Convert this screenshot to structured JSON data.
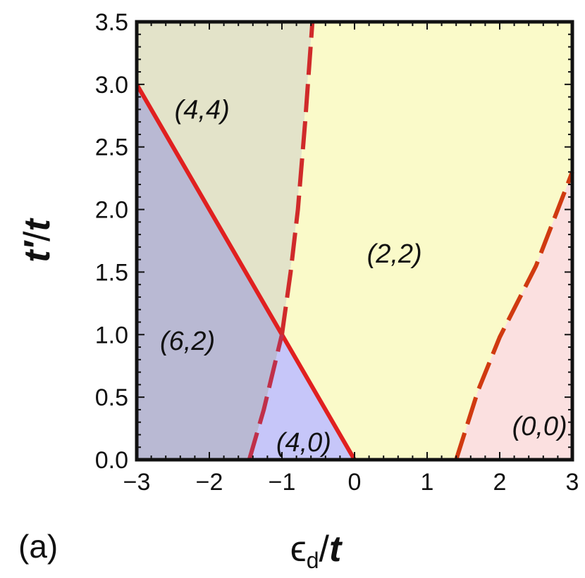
{
  "panel_label": "(a)",
  "chart_data": {
    "type": "area",
    "chart_kind": "phase diagram",
    "xlabel": {
      "symbol": "ϵ",
      "subscript": "d",
      "slash": "/",
      "unit": "t"
    },
    "ylabel": {
      "symbol": "t′",
      "slash": "/",
      "unit": "t"
    },
    "xlim": [
      -3,
      3
    ],
    "ylim": [
      0,
      3.5
    ],
    "xticks": [
      -3,
      -2,
      -1,
      0,
      1,
      2,
      3
    ],
    "xtick_labels": [
      "−3",
      "−2",
      "−1",
      "0",
      "1",
      "2",
      "3"
    ],
    "yticks": [
      0,
      0.5,
      1,
      1.5,
      2,
      2.5,
      3,
      3.5
    ],
    "ytick_labels": [
      "0.0",
      "0.5",
      "1.0",
      "1.5",
      "2.0",
      "2.5",
      "3.0",
      "3.5"
    ],
    "grid": false,
    "regions": [
      {
        "label": "(4,4)",
        "color": "#e3e3c9",
        "label_pos": [
          -2.1,
          2.8
        ],
        "polygon": [
          [
            -3,
            3.5
          ],
          [
            -0.58,
            3.5
          ],
          [
            -0.82,
            1.8
          ],
          [
            -1.0,
            1.0
          ],
          [
            -3,
            3.0
          ]
        ]
      },
      {
        "label": "(6,2)",
        "color": "#b9b9d3",
        "label_pos": [
          -2.3,
          0.95
        ],
        "polygon": [
          [
            -3,
            3.0
          ],
          [
            -1.0,
            1.0
          ],
          [
            -1.25,
            0.4
          ],
          [
            -1.45,
            0
          ],
          [
            -3,
            0
          ]
        ]
      },
      {
        "label": "(4,0)",
        "color": "#c6c6f9",
        "label_pos": [
          -0.7,
          0.14
        ],
        "polygon": [
          [
            -1.45,
            0
          ],
          [
            -1.25,
            0.4
          ],
          [
            -1.0,
            1.0
          ],
          [
            0,
            0
          ]
        ]
      },
      {
        "label": "(2,2)",
        "color": "#fafac9",
        "label_pos": [
          0.55,
          1.65
        ],
        "polygon": [
          [
            -1.0,
            1.0
          ],
          [
            -0.82,
            1.8
          ],
          [
            -0.58,
            3.5
          ],
          [
            3,
            3.5
          ],
          [
            3,
            2.3
          ],
          [
            2.5,
            1.55
          ],
          [
            2.0,
            0.98
          ],
          [
            1.7,
            0.55
          ],
          [
            1.4,
            0
          ],
          [
            0,
            0
          ]
        ]
      },
      {
        "label": "(0,0)",
        "color": "#fbe0e0",
        "label_pos": [
          2.55,
          0.27
        ],
        "polygon": [
          [
            1.4,
            0
          ],
          [
            1.7,
            0.55
          ],
          [
            2.0,
            0.98
          ],
          [
            2.5,
            1.55
          ],
          [
            3,
            2.3
          ],
          [
            3,
            0
          ]
        ]
      }
    ],
    "boundaries": [
      {
        "style": "solid",
        "color": "#e02020",
        "points": [
          [
            -3,
            3.0
          ],
          [
            -1.0,
            1.0
          ],
          [
            0,
            0
          ]
        ]
      },
      {
        "style": "dashed",
        "color": "#c0304a",
        "points": [
          [
            -1.45,
            0
          ],
          [
            -1.25,
            0.4
          ],
          [
            -1.0,
            1.0
          ]
        ]
      },
      {
        "style": "dashed",
        "color": "#d02a2a",
        "points": [
          [
            -1.0,
            1.0
          ],
          [
            -0.88,
            1.5
          ],
          [
            -0.78,
            2.0
          ],
          [
            -0.68,
            2.7
          ],
          [
            -0.58,
            3.5
          ]
        ]
      },
      {
        "style": "dashed",
        "color": "#d03a10",
        "points": [
          [
            1.4,
            0
          ],
          [
            1.7,
            0.55
          ],
          [
            2.0,
            0.98
          ],
          [
            2.5,
            1.55
          ],
          [
            3,
            2.3
          ]
        ]
      }
    ]
  }
}
